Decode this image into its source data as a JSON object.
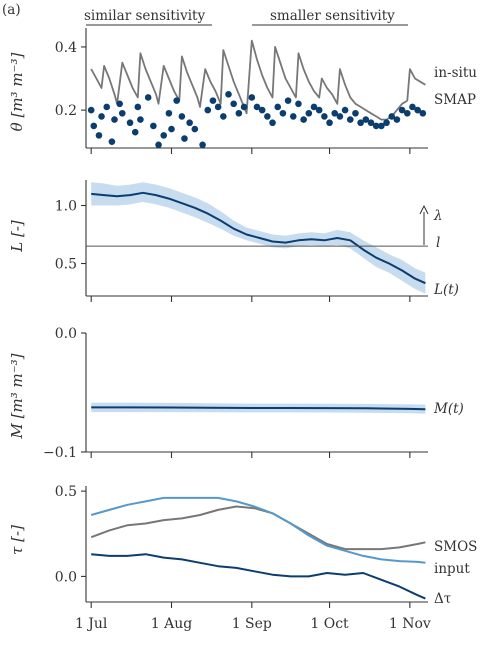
{
  "colors": {
    "insitu": "#777777",
    "smap": "#0b3d6f",
    "L_line": "#0b3d6f",
    "band": "#c7dcee",
    "tau_input": "#5599cc",
    "tau_smos": "#777777",
    "tau_delta": "#0b3d6f",
    "axis": "#333333"
  },
  "shared_x": {
    "type": "date",
    "ticks": [
      "2016-07-01",
      "2016-08-01",
      "2016-09-01",
      "2016-10-01",
      "2016-11-01"
    ],
    "tick_labels": [
      "1 Jul",
      "1 Aug",
      "1 Sep",
      "1 Oct",
      "1 Nov"
    ],
    "xlim": [
      "2016-06-29",
      "2016-11-08"
    ]
  },
  "top_labels": {
    "left": "similar sensitivity",
    "right": "smaller sensitivity",
    "corner": "(a)"
  },
  "chart_data": [
    {
      "id": "theta",
      "type": "line",
      "ylabel": "θ [m³ m⁻³]",
      "ylim": [
        0.08,
        0.46
      ],
      "yticks": [
        0.2,
        0.4
      ],
      "ytick_labels": [
        "0.2",
        "0.4"
      ],
      "series": [
        {
          "name": "in-situ",
          "style": "line",
          "x": [
            "2016-07-01",
            "2016-07-03",
            "2016-07-05",
            "2016-07-06",
            "2016-07-08",
            "2016-07-10",
            "2016-07-11",
            "2016-07-13",
            "2016-07-15",
            "2016-07-17",
            "2016-07-19",
            "2016-07-20",
            "2016-07-22",
            "2016-07-24",
            "2016-07-26",
            "2016-07-27",
            "2016-07-29",
            "2016-07-31",
            "2016-08-02",
            "2016-08-04",
            "2016-08-05",
            "2016-08-07",
            "2016-08-09",
            "2016-08-11",
            "2016-08-12",
            "2016-08-14",
            "2016-08-16",
            "2016-08-18",
            "2016-08-20",
            "2016-08-21",
            "2016-08-23",
            "2016-08-25",
            "2016-08-27",
            "2016-08-29",
            "2016-08-30",
            "2016-09-01",
            "2016-09-03",
            "2016-09-05",
            "2016-09-07",
            "2016-09-09",
            "2016-09-10",
            "2016-09-12",
            "2016-09-14",
            "2016-09-16",
            "2016-09-18",
            "2016-09-19",
            "2016-09-21",
            "2016-09-23",
            "2016-09-25",
            "2016-09-27",
            "2016-09-28",
            "2016-09-30",
            "2016-10-02",
            "2016-10-04",
            "2016-10-05",
            "2016-10-07",
            "2016-10-09",
            "2016-10-11",
            "2016-10-13",
            "2016-10-15",
            "2016-10-17",
            "2016-10-19",
            "2016-10-21",
            "2016-10-23",
            "2016-10-25",
            "2016-10-27",
            "2016-10-29",
            "2016-10-31",
            "2016-11-01",
            "2016-11-03",
            "2016-11-05",
            "2016-11-07"
          ],
          "values": [
            0.33,
            0.3,
            0.27,
            0.34,
            0.3,
            0.25,
            0.22,
            0.35,
            0.31,
            0.27,
            0.24,
            0.38,
            0.33,
            0.29,
            0.25,
            0.22,
            0.34,
            0.3,
            0.26,
            0.23,
            0.37,
            0.32,
            0.28,
            0.24,
            0.21,
            0.33,
            0.29,
            0.26,
            0.22,
            0.39,
            0.34,
            0.29,
            0.25,
            0.21,
            0.19,
            0.42,
            0.36,
            0.31,
            0.27,
            0.24,
            0.4,
            0.35,
            0.3,
            0.27,
            0.24,
            0.38,
            0.33,
            0.29,
            0.26,
            0.24,
            0.3,
            0.27,
            0.25,
            0.22,
            0.33,
            0.28,
            0.24,
            0.22,
            0.21,
            0.2,
            0.19,
            0.18,
            0.17,
            0.17,
            0.18,
            0.2,
            0.22,
            0.23,
            0.33,
            0.3,
            0.29,
            0.28
          ]
        },
        {
          "name": "SMAP",
          "style": "scatter",
          "x": [
            "2016-07-01",
            "2016-07-02",
            "2016-07-04",
            "2016-07-05",
            "2016-07-07",
            "2016-07-09",
            "2016-07-10",
            "2016-07-12",
            "2016-07-13",
            "2016-07-16",
            "2016-07-18",
            "2016-07-19",
            "2016-07-20",
            "2016-07-23",
            "2016-07-25",
            "2016-07-27",
            "2016-07-29",
            "2016-07-31",
            "2016-08-01",
            "2016-08-03",
            "2016-08-05",
            "2016-08-06",
            "2016-08-08",
            "2016-08-10",
            "2016-08-13",
            "2016-08-15",
            "2016-08-17",
            "2016-08-19",
            "2016-08-21",
            "2016-08-23",
            "2016-08-25",
            "2016-08-27",
            "2016-08-29",
            "2016-09-01",
            "2016-09-03",
            "2016-09-05",
            "2016-09-07",
            "2016-09-09",
            "2016-09-11",
            "2016-09-13",
            "2016-09-15",
            "2016-09-17",
            "2016-09-19",
            "2016-09-21",
            "2016-09-23",
            "2016-09-25",
            "2016-09-27",
            "2016-09-29",
            "2016-10-01",
            "2016-10-03",
            "2016-10-05",
            "2016-10-07",
            "2016-10-09",
            "2016-10-11",
            "2016-10-13",
            "2016-10-15",
            "2016-10-17",
            "2016-10-19",
            "2016-10-21",
            "2016-10-23",
            "2016-10-25",
            "2016-10-27",
            "2016-10-29",
            "2016-10-31",
            "2016-11-02",
            "2016-11-04",
            "2016-11-06"
          ],
          "values": [
            0.2,
            0.15,
            0.12,
            0.18,
            0.21,
            0.1,
            0.17,
            0.22,
            0.19,
            0.16,
            0.13,
            0.21,
            0.17,
            0.24,
            0.15,
            0.09,
            0.12,
            0.19,
            0.14,
            0.23,
            0.18,
            0.11,
            0.16,
            0.14,
            0.09,
            0.2,
            0.23,
            0.21,
            0.18,
            0.25,
            0.22,
            0.19,
            0.21,
            0.24,
            0.21,
            0.2,
            0.18,
            0.16,
            0.21,
            0.19,
            0.23,
            0.18,
            0.22,
            0.17,
            0.19,
            0.21,
            0.2,
            0.18,
            0.16,
            0.19,
            0.18,
            0.2,
            0.17,
            0.19,
            0.16,
            0.17,
            0.16,
            0.15,
            0.15,
            0.16,
            0.18,
            0.17,
            0.2,
            0.19,
            0.21,
            0.2,
            0.19
          ]
        }
      ]
    },
    {
      "id": "L",
      "type": "line",
      "ylabel": "L [-]",
      "ylim": [
        0.22,
        1.22
      ],
      "yticks": [
        0.5,
        1.0
      ],
      "ytick_labels": [
        "0.5",
        "1.0"
      ],
      "series": [
        {
          "name": "L(t)",
          "x": [
            "2016-07-01",
            "2016-07-06",
            "2016-07-11",
            "2016-07-16",
            "2016-07-21",
            "2016-07-26",
            "2016-07-31",
            "2016-08-05",
            "2016-08-10",
            "2016-08-15",
            "2016-08-20",
            "2016-08-25",
            "2016-08-30",
            "2016-09-04",
            "2016-09-09",
            "2016-09-14",
            "2016-09-19",
            "2016-09-24",
            "2016-09-29",
            "2016-10-04",
            "2016-10-09",
            "2016-10-14",
            "2016-10-19",
            "2016-10-24",
            "2016-10-29",
            "2016-11-03",
            "2016-11-07"
          ],
          "values": [
            1.1,
            1.09,
            1.08,
            1.09,
            1.11,
            1.09,
            1.06,
            1.02,
            0.98,
            0.93,
            0.87,
            0.8,
            0.75,
            0.72,
            0.69,
            0.68,
            0.7,
            0.71,
            0.7,
            0.72,
            0.7,
            0.62,
            0.55,
            0.5,
            0.44,
            0.37,
            0.33
          ],
          "lower": [
            1.0,
            1.0,
            1.0,
            1.01,
            1.03,
            1.01,
            0.98,
            0.94,
            0.9,
            0.85,
            0.8,
            0.74,
            0.7,
            0.67,
            0.64,
            0.63,
            0.65,
            0.66,
            0.65,
            0.66,
            0.63,
            0.55,
            0.47,
            0.42,
            0.35,
            0.28,
            0.24
          ],
          "upper": [
            1.2,
            1.19,
            1.17,
            1.18,
            1.2,
            1.18,
            1.15,
            1.11,
            1.07,
            1.02,
            0.95,
            0.87,
            0.81,
            0.78,
            0.75,
            0.74,
            0.76,
            0.77,
            0.76,
            0.79,
            0.77,
            0.7,
            0.64,
            0.58,
            0.53,
            0.46,
            0.42
          ]
        },
        {
          "name": "l",
          "style": "hline",
          "value": 0.65
        }
      ],
      "annotations": {
        "arrow_label": "λ",
        "threshold_label": "l"
      }
    },
    {
      "id": "M",
      "type": "line",
      "ylabel": "M [m³ m⁻³]",
      "ylim": [
        -0.1,
        0.0
      ],
      "yticks": [
        -0.1,
        0.0
      ],
      "ytick_labels": [
        "−0.1",
        "0.0"
      ],
      "series": [
        {
          "name": "M(t)",
          "x": [
            "2016-07-01",
            "2016-07-15",
            "2016-08-01",
            "2016-08-15",
            "2016-09-01",
            "2016-09-15",
            "2016-10-01",
            "2016-10-15",
            "2016-11-01",
            "2016-11-07"
          ],
          "values": [
            -0.0625,
            -0.0625,
            -0.0626,
            -0.0628,
            -0.063,
            -0.063,
            -0.0631,
            -0.0633,
            -0.0638,
            -0.064
          ],
          "lower": [
            -0.0665,
            -0.0665,
            -0.0665,
            -0.0666,
            -0.0667,
            -0.0667,
            -0.0668,
            -0.067,
            -0.0675,
            -0.0678
          ],
          "upper": [
            -0.0585,
            -0.0585,
            -0.0587,
            -0.059,
            -0.0593,
            -0.0593,
            -0.0594,
            -0.0596,
            -0.06,
            -0.0602
          ]
        }
      ]
    },
    {
      "id": "tau",
      "type": "line",
      "ylabel": "τ [-]",
      "ylim": [
        -0.15,
        0.53
      ],
      "yticks": [
        0.0,
        0.5
      ],
      "ytick_labels": [
        "0.0",
        "0.5"
      ],
      "series": [
        {
          "name": "SMOS",
          "x": [
            "2016-07-01",
            "2016-07-08",
            "2016-07-15",
            "2016-07-22",
            "2016-07-29",
            "2016-08-05",
            "2016-08-12",
            "2016-08-19",
            "2016-08-26",
            "2016-09-02",
            "2016-09-09",
            "2016-09-16",
            "2016-09-23",
            "2016-09-30",
            "2016-10-07",
            "2016-10-14",
            "2016-10-21",
            "2016-10-28",
            "2016-11-04",
            "2016-11-07"
          ],
          "values": [
            0.23,
            0.27,
            0.3,
            0.31,
            0.33,
            0.34,
            0.36,
            0.39,
            0.41,
            0.4,
            0.37,
            0.31,
            0.25,
            0.19,
            0.16,
            0.16,
            0.16,
            0.17,
            0.19,
            0.2
          ]
        },
        {
          "name": "input",
          "x": [
            "2016-07-01",
            "2016-07-08",
            "2016-07-15",
            "2016-07-22",
            "2016-07-29",
            "2016-08-05",
            "2016-08-12",
            "2016-08-19",
            "2016-08-26",
            "2016-09-02",
            "2016-09-09",
            "2016-09-16",
            "2016-09-23",
            "2016-09-30",
            "2016-10-07",
            "2016-10-14",
            "2016-10-21",
            "2016-10-28",
            "2016-11-04",
            "2016-11-07"
          ],
          "values": [
            0.36,
            0.39,
            0.42,
            0.44,
            0.46,
            0.46,
            0.46,
            0.46,
            0.44,
            0.41,
            0.37,
            0.31,
            0.24,
            0.18,
            0.15,
            0.12,
            0.1,
            0.09,
            0.085,
            0.08
          ]
        },
        {
          "name": "Δτ",
          "x": [
            "2016-07-01",
            "2016-07-08",
            "2016-07-15",
            "2016-07-22",
            "2016-07-29",
            "2016-08-05",
            "2016-08-12",
            "2016-08-19",
            "2016-08-26",
            "2016-09-02",
            "2016-09-09",
            "2016-09-16",
            "2016-09-23",
            "2016-09-30",
            "2016-10-07",
            "2016-10-14",
            "2016-10-21",
            "2016-10-28",
            "2016-11-04",
            "2016-11-07"
          ],
          "values": [
            0.13,
            0.12,
            0.12,
            0.13,
            0.11,
            0.1,
            0.08,
            0.06,
            0.05,
            0.03,
            0.01,
            0.0,
            0.0,
            0.02,
            0.01,
            0.02,
            -0.02,
            -0.06,
            -0.11,
            -0.13
          ]
        }
      ]
    }
  ]
}
